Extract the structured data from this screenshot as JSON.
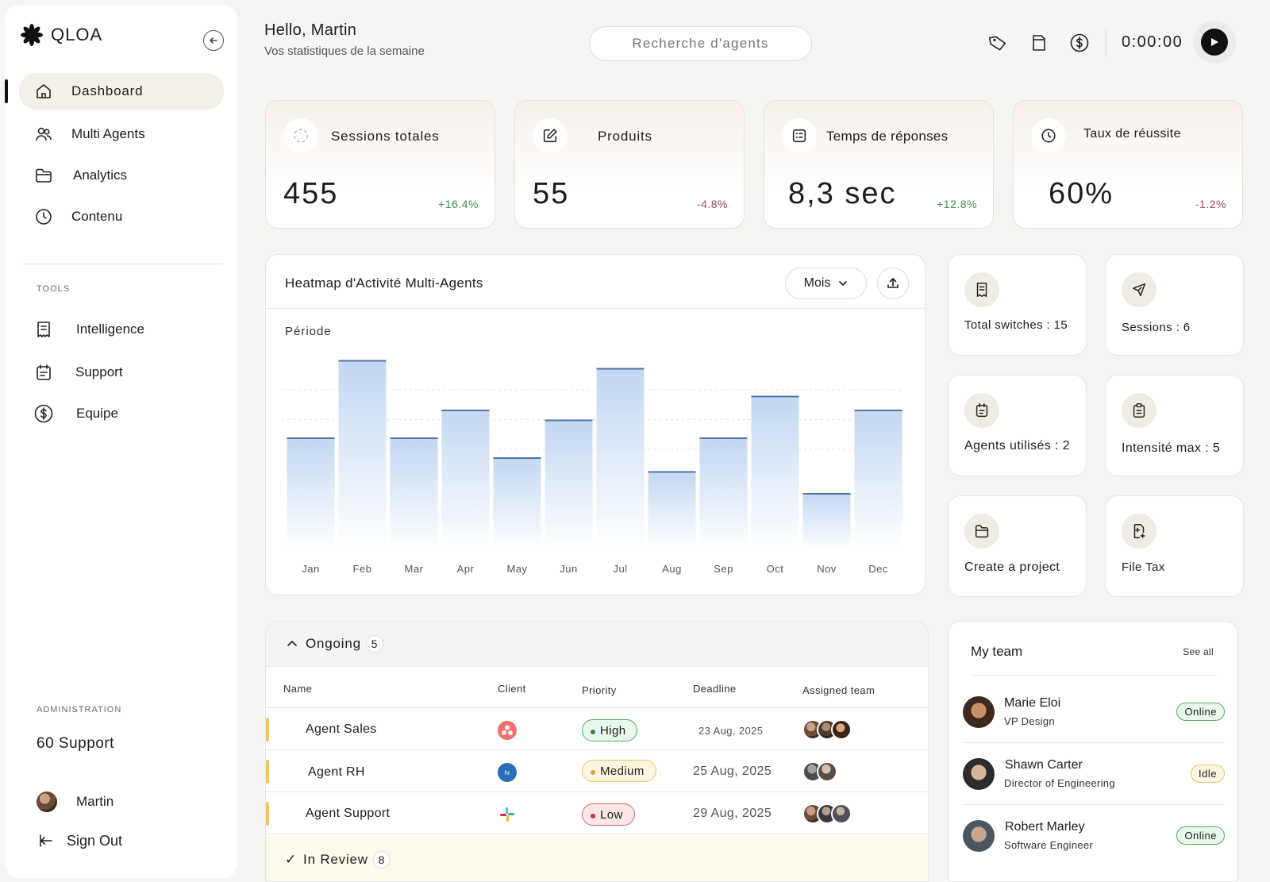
{
  "app": {
    "name": "QLOA"
  },
  "sidebar": {
    "nav": [
      {
        "label": "Dashboard",
        "icon": "home-icon",
        "active": true
      },
      {
        "label": "Multi Agents",
        "icon": "users-icon"
      },
      {
        "label": "Analytics",
        "icon": "folder-icon"
      },
      {
        "label": "Contenu",
        "icon": "clock-icon"
      }
    ],
    "tools_label": "TOOLS",
    "tools": [
      {
        "label": "Intelligence",
        "icon": "receipt-icon"
      },
      {
        "label": "Support",
        "icon": "calendar-icon"
      },
      {
        "label": "Equipe",
        "icon": "dollar-icon"
      }
    ],
    "admin_label": "ADMINISTRATION",
    "admin_support": "60 Support",
    "user_name": "Martin",
    "sign_out": "Sign Out"
  },
  "header": {
    "greeting": "Hello, Martin",
    "subtitle": "Vos statistiques de la semaine",
    "search_placeholder": "Recherche d'agents",
    "timer": "0:00:00"
  },
  "stats": [
    {
      "label": "Sessions totales",
      "value": "455",
      "delta": "+16.4%",
      "trend": "up"
    },
    {
      "label": "Produits",
      "value": "55",
      "delta": "-4.8%",
      "trend": "down"
    },
    {
      "label": "Temps de réponses",
      "value": "8,3 sec",
      "delta": "+12.8%",
      "trend": "up"
    },
    {
      "label": "Taux de réussite",
      "value": "60%",
      "delta": "-1.2%",
      "trend": "down"
    }
  ],
  "heatmap": {
    "title": "Heatmap d'Activité Multi-Agents",
    "period_select": "Mois",
    "period_label": "Période"
  },
  "chart_data": {
    "type": "bar",
    "title": "Heatmap d'Activité Multi-Agents",
    "xlabel": "",
    "ylabel": "",
    "categories": [
      "Jan",
      "Feb",
      "Mar",
      "Apr",
      "May",
      "Jun",
      "Jul",
      "Aug",
      "Sep",
      "Oct",
      "Nov",
      "Dec"
    ],
    "values": [
      56,
      95,
      56,
      70,
      46,
      65,
      91,
      39,
      56,
      77,
      28,
      70
    ],
    "ylim": [
      0,
      100
    ],
    "grid": true,
    "bar_color": "#c7daf2",
    "bar_top_color": "#4f75a6"
  },
  "quick": [
    {
      "label": "Total switches : 15",
      "icon": "receipt-icon"
    },
    {
      "label": "Sessions : 6",
      "icon": "send-icon"
    },
    {
      "label": "Agents utilisés : 2",
      "icon": "calendar-icon"
    },
    {
      "label": "Intensité max : 5",
      "icon": "clipboard-icon"
    },
    {
      "label": "Create a project",
      "icon": "folder-icon"
    },
    {
      "label": "File Tax",
      "icon": "file-plus-icon"
    }
  ],
  "tasks": {
    "group": "Ongoing",
    "count": "5",
    "columns": [
      "Name",
      "Client",
      "Priority",
      "Deadline",
      "Assigned team"
    ],
    "rows": [
      {
        "name": "Agent Sales",
        "priority": "High",
        "deadline": "23 Aug, 2025"
      },
      {
        "name": "Agent RH",
        "priority": "Medium",
        "deadline": "25 Aug, 2025"
      },
      {
        "name": "Agent Support",
        "priority": "Low",
        "deadline": "29 Aug, 2025"
      }
    ],
    "review_group": "In Review",
    "review_count": "8"
  },
  "team": {
    "title": "My team",
    "see_all": "See all",
    "members": [
      {
        "name": "Marie Eloi",
        "role": "VP Design",
        "status": "Online"
      },
      {
        "name": "Shawn Carter",
        "role": "Director of Engineering",
        "status": "Idle"
      },
      {
        "name": "Robert Marley",
        "role": "Software Engineer",
        "status": "Online"
      }
    ]
  }
}
